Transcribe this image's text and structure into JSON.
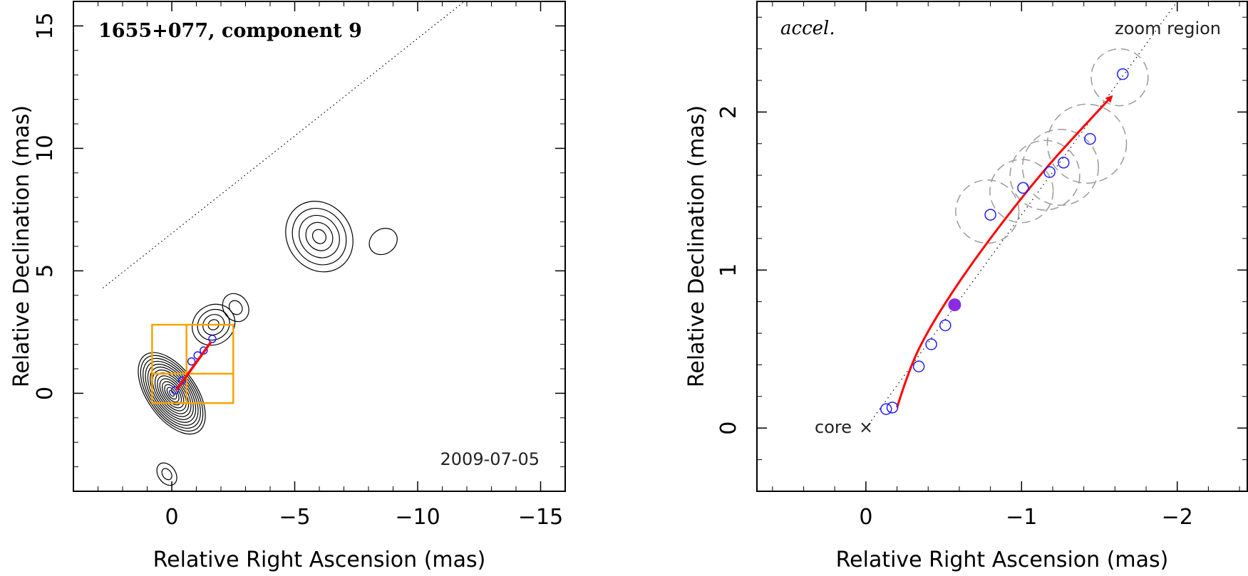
{
  "chart_data": [
    {
      "type": "scatter",
      "title": "1655+077, component 9",
      "date": "2009-07-05",
      "xlabel": "Relative Right Ascension (mas)",
      "ylabel": "Relative Declination (mas)",
      "xlim": [
        4,
        -16
      ],
      "ylim": [
        -4,
        16
      ],
      "xticks": [
        0,
        -5,
        -10,
        -15
      ],
      "xtick_labels": [
        "0",
        "−5",
        "−10",
        "−15"
      ],
      "yticks": [
        0,
        5,
        10,
        15
      ],
      "ytick_labels": [
        "0",
        "5",
        "10",
        "15"
      ],
      "jet_axis": {
        "from": [
          2.8,
          4.3
        ],
        "to": [
          -11.9,
          16
        ]
      },
      "zoom_grid": {
        "x_edges": [
          0.8,
          -0.6,
          -2.5
        ],
        "y_edges": [
          -0.4,
          0.8,
          2.8
        ]
      },
      "track": {
        "from": [
          -0.2,
          0.15
        ],
        "to": [
          -1.6,
          2.1
        ]
      },
      "components": [
        {
          "x": -0.13,
          "y": 0.12
        },
        {
          "x": -0.42,
          "y": 0.52
        },
        {
          "x": -0.8,
          "y": 1.3
        },
        {
          "x": -1.05,
          "y": 1.55
        },
        {
          "x": -1.3,
          "y": 1.75
        },
        {
          "x": -1.65,
          "y": 2.22
        }
      ],
      "peaks": [
        {
          "x": 0.0,
          "y": 0.0,
          "rx": 1.0,
          "ry": 1.9,
          "levels": 14
        },
        {
          "x": -1.7,
          "y": 2.8,
          "rx": 0.9,
          "ry": 0.8,
          "levels": 4
        },
        {
          "x": -2.6,
          "y": 3.5,
          "rx": 0.5,
          "ry": 0.6,
          "levels": 2
        },
        {
          "x": -6.0,
          "y": 6.4,
          "rx": 1.3,
          "ry": 1.5,
          "levels": 5
        },
        {
          "x": -8.6,
          "y": 6.2,
          "rx": 0.6,
          "ry": 0.5,
          "levels": 1
        },
        {
          "x": 0.2,
          "y": -3.3,
          "rx": 0.35,
          "ry": 0.5,
          "levels": 2
        }
      ]
    },
    {
      "type": "scatter",
      "label": "accel.",
      "zoom_label": "zoom region",
      "core_label": "core",
      "xlabel": "Relative Right Ascension (mas)",
      "ylabel": "Relative Declination (mas)",
      "xlim": [
        0.7,
        -2.45
      ],
      "ylim": [
        -0.4,
        2.7
      ],
      "xticks": [
        0,
        -1,
        -2
      ],
      "xtick_labels": [
        "0",
        "−1",
        "−2"
      ],
      "yticks": [
        0,
        1,
        2
      ],
      "ytick_labels": [
        "0",
        "1",
        "2"
      ],
      "jet_axis": {
        "from": [
          0.0,
          0.0
        ],
        "to": [
          -2.0,
          2.7
        ]
      },
      "components": [
        {
          "x": -0.13,
          "y": 0.12
        },
        {
          "x": -0.17,
          "y": 0.13
        },
        {
          "x": -0.34,
          "y": 0.39
        },
        {
          "x": -0.42,
          "y": 0.53
        },
        {
          "x": -0.51,
          "y": 0.65
        },
        {
          "x": -0.8,
          "y": 1.35
        },
        {
          "x": -1.01,
          "y": 1.52
        },
        {
          "x": -1.18,
          "y": 1.62
        },
        {
          "x": -1.27,
          "y": 1.68
        },
        {
          "x": -1.44,
          "y": 1.83
        },
        {
          "x": -1.65,
          "y": 2.24
        }
      ],
      "current_position": {
        "x": -0.57,
        "y": 0.78
      },
      "uncertainty_circles": [
        {
          "x": -0.78,
          "y": 1.37,
          "r": 0.2
        },
        {
          "x": -1.0,
          "y": 1.5,
          "r": 0.2
        },
        {
          "x": -1.15,
          "y": 1.6,
          "r": 0.22
        },
        {
          "x": -1.25,
          "y": 1.65,
          "r": 0.24
        },
        {
          "x": -1.42,
          "y": 1.8,
          "r": 0.25
        },
        {
          "x": -1.63,
          "y": 2.22,
          "r": 0.18
        }
      ],
      "track": [
        {
          "x": -0.2,
          "y": 0.13
        },
        {
          "x": -0.28,
          "y": 0.38
        },
        {
          "x": -0.4,
          "y": 0.62
        },
        {
          "x": -0.6,
          "y": 0.93
        },
        {
          "x": -0.85,
          "y": 1.27
        },
        {
          "x": -1.15,
          "y": 1.64
        },
        {
          "x": -1.4,
          "y": 1.91
        },
        {
          "x": -1.58,
          "y": 2.1
        }
      ]
    }
  ]
}
